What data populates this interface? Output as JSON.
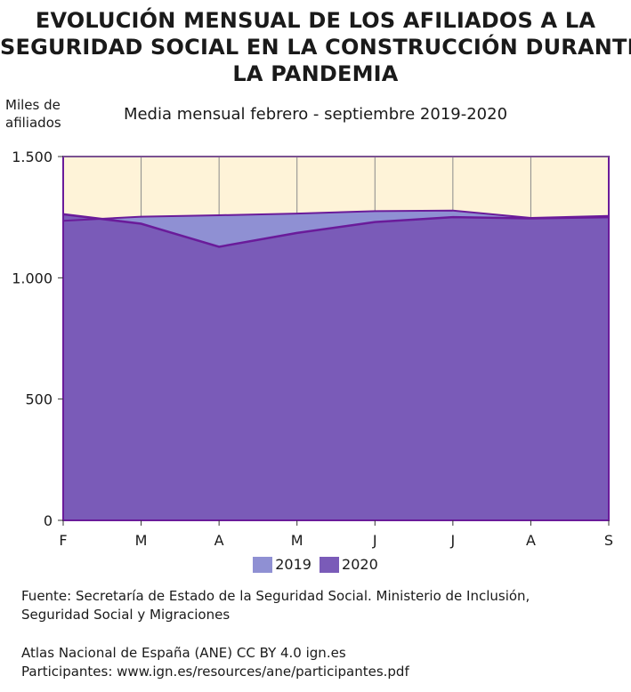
{
  "title_lines": [
    "EVOLUCIÓN MENSUAL DE LOS AFILIADOS A LA",
    "SEGURIDAD SOCIAL EN LA CONSTRUCCIÓN DURANTE",
    "LA PANDEMIA"
  ],
  "subtitle": "Media mensual febrero - septiembre 2019-2020",
  "ylabel_lines": [
    "Miles de",
    "afiliados"
  ],
  "legend": [
    {
      "label": "2019",
      "color": "#8f90d3"
    },
    {
      "label": "2020",
      "color": "#7a5bb8"
    }
  ],
  "source_lines": [
    "Fuente: Secretaría de Estado de la Seguridad Social. Ministerio de Inclusión,",
    "Seguridad Social y Migraciones"
  ],
  "credit_lines": [
    "Atlas Nacional de España (ANE) CC BY 4.0 ign.es",
    "Participantes: www.ign.es/resources/ane/participantes.pdf"
  ],
  "chart_data": {
    "type": "area",
    "title": "EVOLUCIÓN MENSUAL DE LOS AFILIADOS A LA SEGURIDAD SOCIAL EN LA CONSTRUCCIÓN DURANTE LA PANDEMIA",
    "subtitle": "Media mensual febrero - septiembre 2019-2020",
    "ylabel": "Miles de afiliados",
    "xlabel": "",
    "categories": [
      "F",
      "M",
      "A",
      "M",
      "J",
      "J",
      "A",
      "S"
    ],
    "ylim": [
      0,
      1500
    ],
    "yticks": [
      0,
      500,
      1000,
      1500
    ],
    "ytick_labels": [
      "0",
      "500",
      "1.000",
      "1.500"
    ],
    "grid": "vertical",
    "series": [
      {
        "name": "2019",
        "values": [
          1235,
          1252,
          1258,
          1265,
          1275,
          1277,
          1247,
          1255
        ],
        "color": "#8f90d3"
      },
      {
        "name": "2020",
        "values": [
          1262,
          1223,
          1128,
          1185,
          1230,
          1250,
          1245,
          1250
        ],
        "color": "#7a5bb8",
        "line_color": "#6a1b9a"
      }
    ],
    "above_area_color": "#fef3d8"
  }
}
